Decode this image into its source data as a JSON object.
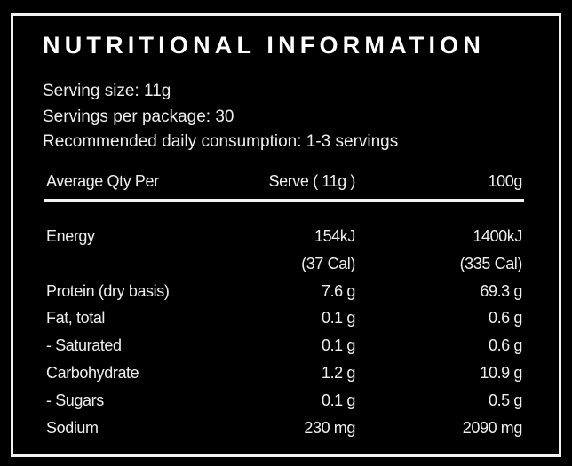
{
  "header": {
    "title": "NUTRITIONAL INFORMATION"
  },
  "serving_info": [
    "Serving size: 11g",
    "Servings per package: 30",
    "Recommended daily consumption: 1-3 servings"
  ],
  "table": {
    "columns": [
      "Average Qty Per",
      "Serve ( 11g )",
      "100g"
    ],
    "rows": [
      {
        "label": "Energy",
        "serve": [
          "154kJ",
          "(37 Cal)"
        ],
        "per_100g": [
          "1400kJ",
          "(335 Cal)"
        ]
      },
      {
        "label": "Protein (dry basis)",
        "serve": "7.6 g",
        "per_100g": "69.3 g"
      },
      {
        "label": "Fat, total",
        "serve": "0.1 g",
        "per_100g": "0.6 g"
      },
      {
        "label": "- Saturated",
        "serve": "0.1 g",
        "per_100g": "0.6 g"
      },
      {
        "label": "Carbohydrate",
        "serve": "1.2 g",
        "per_100g": "10.9 g"
      },
      {
        "label": "- Sugars",
        "serve": "0.1 g",
        "per_100g": "0.5 g"
      },
      {
        "label": "Sodium",
        "serve": "230 mg",
        "per_100g": "2090 mg"
      }
    ]
  }
}
